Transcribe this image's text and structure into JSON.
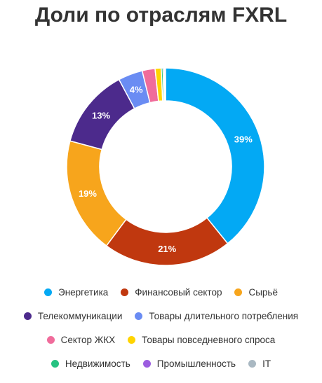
{
  "chart_data": {
    "type": "pie",
    "title": "Доли по отраслям FXRL",
    "donut": true,
    "legend_placement": "bottom",
    "slices": [
      {
        "name": "Энергетика",
        "value": 39.2,
        "label": "39%",
        "color": "#03a9f4"
      },
      {
        "name": "Финансовый сектор",
        "value": 21.0,
        "label": "21%",
        "color": "#c0380f"
      },
      {
        "name": "Сырьё",
        "value": 19.0,
        "label": "19%",
        "color": "#f7a51c"
      },
      {
        "name": "Телекоммуникации",
        "value": 13.0,
        "label": "13%",
        "color": "#4c2a8c"
      },
      {
        "name": "Товары длительного потребления",
        "value": 4.0,
        "label": "4%",
        "color": "#6a8cf3"
      },
      {
        "name": "Сектор ЖКХ",
        "value": 2.1,
        "label": "",
        "color": "#f06c9b"
      },
      {
        "name": "Товары повседневного спроса",
        "value": 1.0,
        "label": "",
        "color": "#ffd400"
      },
      {
        "name": "Недвижимость",
        "value": 0.3,
        "label": "",
        "color": "#26c281"
      },
      {
        "name": "Промышленность",
        "value": 0.2,
        "label": "",
        "color": "#9c5de0"
      },
      {
        "name": "IT",
        "value": 0.2,
        "label": "",
        "color": "#a9b8c2"
      }
    ]
  }
}
